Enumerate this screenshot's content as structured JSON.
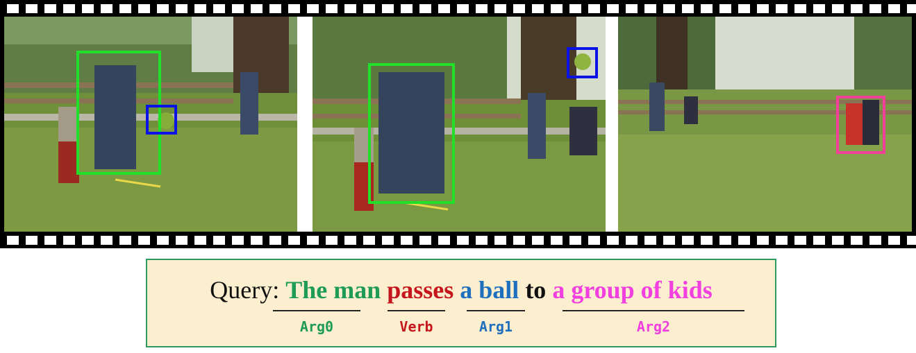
{
  "frames": [
    {
      "name": "frame-1",
      "boxes": [
        {
          "role": "arg0",
          "color": "#22e02a"
        },
        {
          "role": "arg1",
          "color": "#0a12e6"
        }
      ]
    },
    {
      "name": "frame-2",
      "boxes": [
        {
          "role": "arg0",
          "color": "#22e02a"
        },
        {
          "role": "arg1",
          "color": "#0a12e6"
        }
      ]
    },
    {
      "name": "frame-3",
      "boxes": [
        {
          "role": "arg2",
          "color": "#f0409a"
        }
      ]
    }
  ],
  "query": {
    "prefix": "Query: ",
    "arg0_text": "The man",
    "verb_text": "passes",
    "arg1_text": "a ball",
    "to_text": "to",
    "arg2_text": "a group of kids"
  },
  "roles": {
    "arg0": "Arg0",
    "verb": "Verb",
    "arg1": "Arg1",
    "arg2": "Arg2"
  },
  "colors": {
    "arg0": "#1e9b57",
    "verb": "#c4161c",
    "arg1": "#1f6fbf",
    "arg2": "#f23fe0",
    "panel_bg": "#fcefcf",
    "panel_border": "#2f9a5f"
  }
}
